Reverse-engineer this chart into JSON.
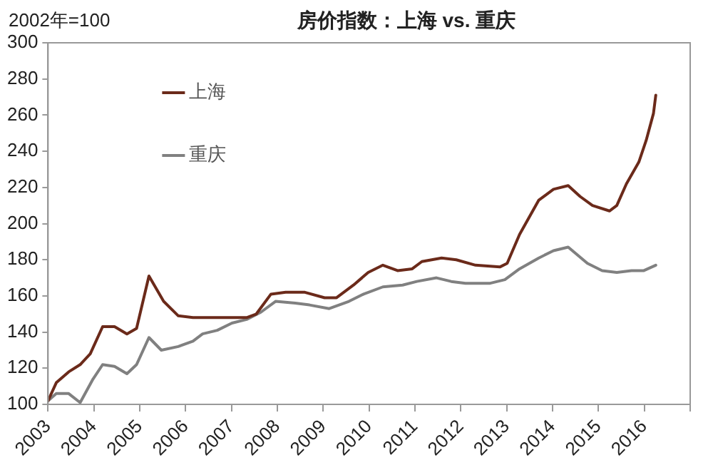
{
  "chart_data": {
    "type": "line",
    "title": "房价指数：上海 vs. 重庆",
    "ylabel": "2002年=100",
    "xlim": [
      2003,
      2017
    ],
    "xticks": [
      2003,
      2004,
      2005,
      2006,
      2007,
      2008,
      2009,
      2010,
      2011,
      2012,
      2013,
      2014,
      2015,
      2016,
      {
        "value": 2017,
        "label": null
      }
    ],
    "ylim": [
      100,
      300
    ],
    "yticks": [
      100,
      120,
      140,
      160,
      180,
      200,
      220,
      240,
      260,
      280,
      300
    ],
    "grid": false,
    "legend": "top left",
    "marker": "none",
    "line_style": "solid",
    "series": [
      {
        "name": "上海",
        "color": "#6b2a1a",
        "x": [
          2003.0,
          2003.18,
          2003.45,
          2003.7,
          2003.92,
          2004.19,
          2004.45,
          2004.72,
          2004.93,
          2005.2,
          2005.52,
          2005.84,
          2006.16,
          2006.69,
          2007.33,
          2007.54,
          2007.86,
          2008.18,
          2008.6,
          2009.03,
          2009.29,
          2009.66,
          2009.98,
          2010.3,
          2010.62,
          2010.94,
          2011.15,
          2011.58,
          2011.9,
          2012.32,
          2012.85,
          2013.01,
          2013.28,
          2013.7,
          2014.02,
          2014.34,
          2014.6,
          2014.87,
          2015.24,
          2015.4,
          2015.61,
          2015.88,
          2016.04,
          2016.2,
          2016.25
        ],
        "values": [
          102,
          112,
          118,
          122,
          128,
          143,
          143,
          139,
          142,
          171,
          157,
          149,
          148,
          148,
          148,
          150,
          161,
          162,
          162,
          159,
          159,
          166,
          173,
          177,
          174,
          175,
          179,
          181,
          180,
          177,
          176,
          178,
          194,
          213,
          219,
          221,
          215,
          210,
          207,
          210,
          222,
          234,
          246,
          261,
          271
        ]
      },
      {
        "name": "重庆",
        "color": "#808080",
        "x": [
          2003.0,
          2003.18,
          2003.45,
          2003.7,
          2003.98,
          2004.19,
          2004.45,
          2004.72,
          2004.93,
          2005.2,
          2005.47,
          2005.84,
          2006.16,
          2006.37,
          2006.69,
          2007.01,
          2007.33,
          2007.64,
          2007.96,
          2008.39,
          2008.7,
          2009.13,
          2009.56,
          2009.88,
          2010.3,
          2010.73,
          2011.04,
          2011.47,
          2011.79,
          2012.1,
          2012.64,
          2012.96,
          2013.28,
          2013.7,
          2014.02,
          2014.34,
          2014.76,
          2015.08,
          2015.4,
          2015.72,
          2015.99,
          2016.25
        ],
        "values": [
          102,
          106,
          106,
          101,
          114,
          122,
          121,
          117,
          122,
          137,
          130,
          132,
          135,
          139,
          141,
          145,
          147,
          151,
          157,
          156,
          155,
          153,
          157,
          161,
          165,
          166,
          168,
          170,
          168,
          167,
          167,
          169,
          175,
          181,
          185,
          187,
          178,
          174,
          173,
          174,
          174,
          177
        ]
      }
    ]
  }
}
